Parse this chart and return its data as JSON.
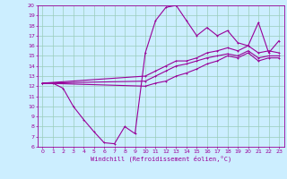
{
  "xlabel": "Windchill (Refroidissement éolien,°C)",
  "bg_color": "#cceeff",
  "grid_color": "#99ccbb",
  "line_color": "#990099",
  "xlim": [
    -0.5,
    23.5
  ],
  "ylim": [
    6,
    20
  ],
  "xticks": [
    0,
    1,
    2,
    3,
    4,
    5,
    6,
    7,
    8,
    9,
    10,
    11,
    12,
    13,
    14,
    15,
    16,
    17,
    18,
    19,
    20,
    21,
    22,
    23
  ],
  "yticks": [
    6,
    7,
    8,
    9,
    10,
    11,
    12,
    13,
    14,
    15,
    16,
    17,
    18,
    19,
    20
  ],
  "line1_x": [
    0,
    1,
    2,
    3,
    4,
    5,
    6,
    7,
    8,
    9,
    10,
    11,
    12,
    13,
    14,
    15,
    16,
    17,
    18,
    19,
    20,
    21,
    22,
    23
  ],
  "line1_y": [
    12.3,
    12.3,
    11.8,
    10.0,
    8.7,
    7.5,
    6.4,
    6.3,
    8.0,
    7.3,
    15.3,
    18.5,
    19.8,
    20.0,
    18.5,
    17.0,
    17.8,
    17.0,
    17.5,
    16.3,
    16.0,
    18.3,
    15.3,
    16.5
  ],
  "line2_x": [
    0,
    10,
    11,
    12,
    13,
    14,
    15,
    16,
    17,
    18,
    19,
    20,
    21,
    22,
    23
  ],
  "line2_y": [
    12.3,
    13.0,
    13.5,
    14.0,
    14.5,
    14.5,
    14.8,
    15.3,
    15.5,
    15.8,
    15.5,
    16.0,
    15.3,
    15.5,
    15.3
  ],
  "line3_x": [
    0,
    10,
    11,
    12,
    13,
    14,
    15,
    16,
    17,
    18,
    19,
    20,
    21,
    22,
    23
  ],
  "line3_y": [
    12.3,
    12.5,
    13.0,
    13.5,
    14.0,
    14.2,
    14.5,
    14.8,
    15.0,
    15.2,
    15.0,
    15.5,
    14.8,
    15.0,
    15.0
  ],
  "line4_x": [
    0,
    10,
    11,
    12,
    13,
    14,
    15,
    16,
    17,
    18,
    19,
    20,
    21,
    22,
    23
  ],
  "line4_y": [
    12.3,
    12.0,
    12.3,
    12.5,
    13.0,
    13.3,
    13.7,
    14.2,
    14.5,
    15.0,
    14.8,
    15.3,
    14.5,
    14.8,
    14.8
  ]
}
